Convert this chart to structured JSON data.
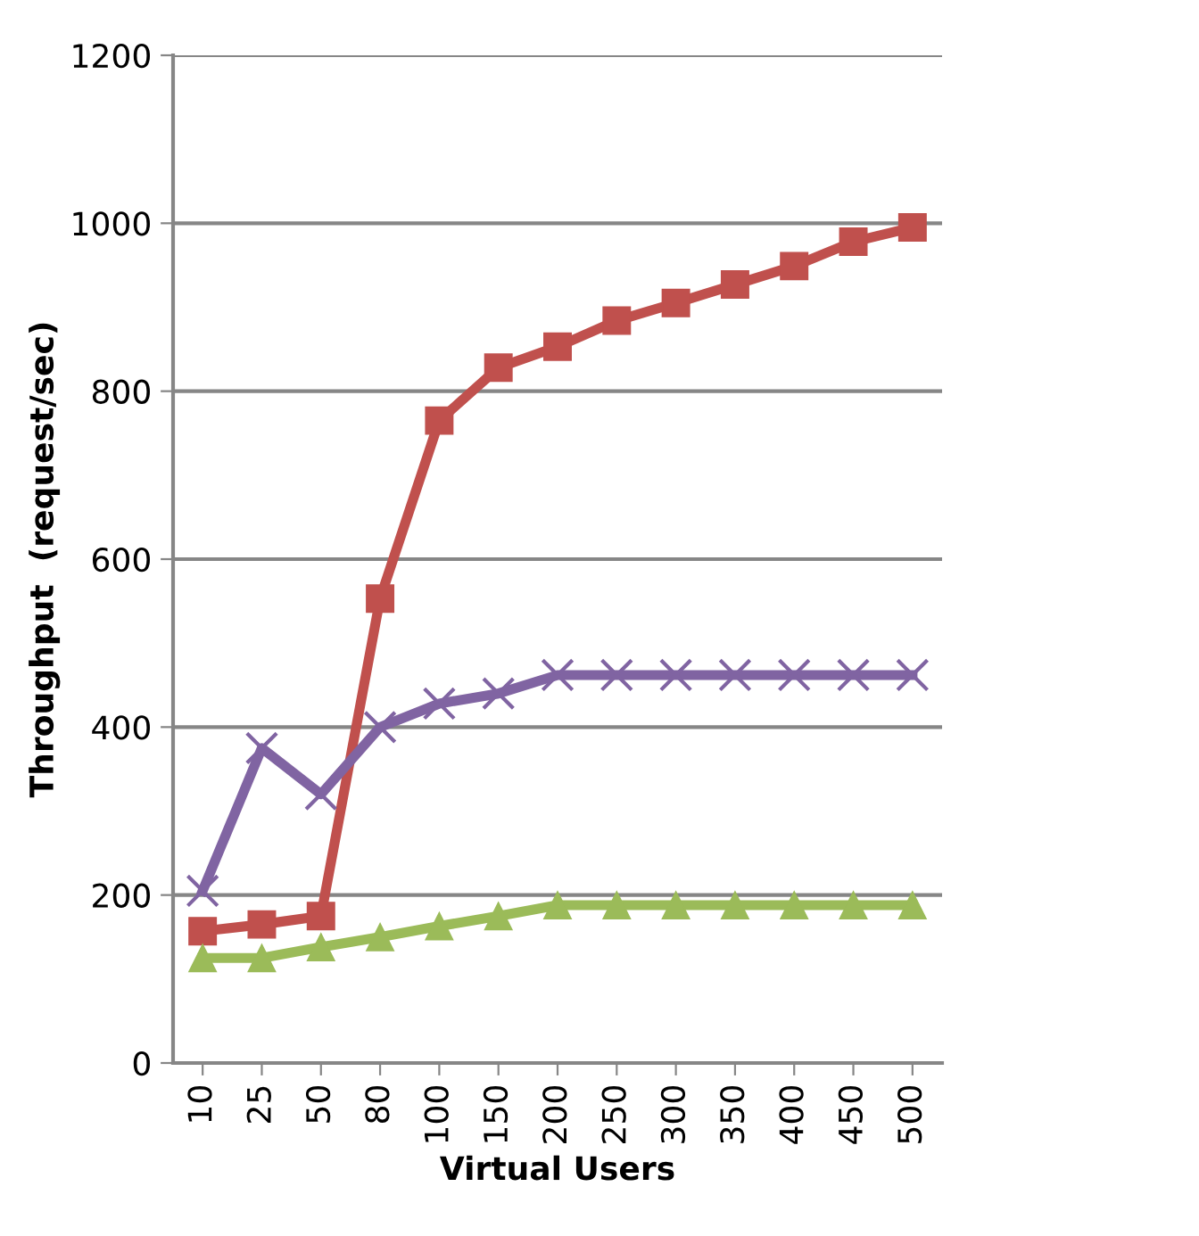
{
  "chart_data": {
    "type": "line",
    "xlabel": "Virtual Users",
    "ylabel": "Throughput  (request/sec)",
    "categories": [
      "10",
      "25",
      "50",
      "80",
      "100",
      "150",
      "200",
      "250",
      "300",
      "350",
      "400",
      "450",
      "500"
    ],
    "series": [
      {
        "color": "#c0504d",
        "marker": "square",
        "values": [
          157,
          165,
          175,
          553,
          765,
          828,
          853,
          884,
          905,
          927,
          949,
          978,
          995
        ]
      },
      {
        "color": "#8064a2",
        "marker": "cross",
        "values": [
          205,
          375,
          320,
          400,
          428,
          440,
          462,
          462,
          462,
          462,
          462,
          462,
          462
        ]
      },
      {
        "color": "#9bbb59",
        "marker": "triangle",
        "values": [
          125,
          125,
          138,
          150,
          163,
          175,
          188,
          188,
          188,
          188,
          188,
          188,
          188
        ]
      }
    ],
    "ylim": [
      0,
      1200
    ],
    "yticks": [
      0,
      200,
      400,
      600,
      800,
      1000,
      1200
    ],
    "grid": "y"
  }
}
